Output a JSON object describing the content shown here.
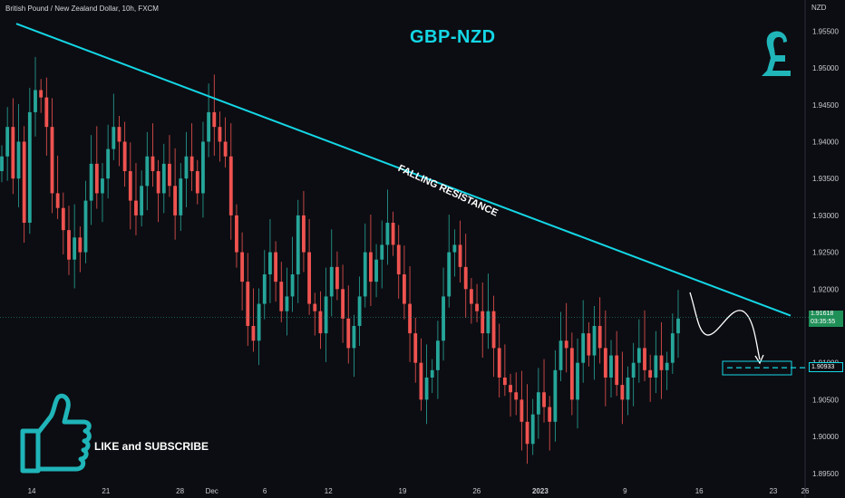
{
  "header": {
    "symbol_title": "British Pound / New Zealand Dollar, 10h, FXCM",
    "unit": "NZD"
  },
  "annotations": {
    "pair": "GBP-NZD",
    "resistance": "FALLING RESISTANCE",
    "cta": "LIKE and SUBSCRIBE"
  },
  "price_labels": {
    "current": "1.91618",
    "countdown": "03:35:55",
    "target": "1.90933"
  },
  "colors": {
    "up": "#26a69a",
    "down": "#ef5350",
    "accent": "#14d7e6",
    "background": "#0c0d12"
  },
  "icons": [
    "pound-sign-icon",
    "thumbs-up-icon"
  ],
  "chart_data": {
    "type": "candlestick",
    "title": "British Pound / New Zealand Dollar, 10h, FXCM",
    "ylabel": "NZD",
    "ylim": [
      1.8935,
      1.9575
    ],
    "yticks": [
      1.955,
      1.95,
      1.945,
      1.94,
      1.935,
      1.93,
      1.925,
      1.92,
      1.915,
      1.91,
      1.905,
      1.9,
      1.895
    ],
    "ytick_labels": [
      "1.95500",
      "1.95000",
      "1.94500",
      "1.94000",
      "1.93500",
      "1.93000",
      "1.92500",
      "1.92000",
      "",
      "1.91000",
      "1.90500",
      "1.90000",
      "1.89500"
    ],
    "xticks": [
      {
        "label": "14",
        "date": "2022-11-14"
      },
      {
        "label": "21",
        "date": "2022-11-21"
      },
      {
        "label": "28",
        "date": "2022-11-28"
      },
      {
        "label": "Dec",
        "date": "2022-12-01"
      },
      {
        "label": "6",
        "date": "2022-12-06"
      },
      {
        "label": "12",
        "date": "2022-12-12"
      },
      {
        "label": "19",
        "date": "2022-12-19"
      },
      {
        "label": "26",
        "date": "2022-12-26"
      },
      {
        "label": "2023",
        "date": "2023-01-01"
      },
      {
        "label": "9",
        "date": "2023-01-09"
      },
      {
        "label": "16",
        "date": "2023-01-16"
      },
      {
        "label": "23",
        "date": "2023-01-23"
      },
      {
        "label": "26",
        "date": "2023-01-26"
      }
    ],
    "xlim": [
      "2022-11-11",
      "2023-01-26"
    ],
    "grid": false,
    "closes": [
      1.938,
      1.942,
      1.935,
      1.94,
      1.929,
      1.944,
      1.947,
      1.946,
      1.942,
      1.933,
      1.931,
      1.928,
      1.924,
      1.927,
      1.925,
      1.932,
      1.937,
      1.933,
      1.935,
      1.939,
      1.942,
      1.94,
      1.936,
      1.932,
      1.93,
      1.934,
      1.938,
      1.936,
      1.933,
      1.937,
      1.934,
      1.93,
      1.935,
      1.938,
      1.936,
      1.933,
      1.94,
      1.944,
      1.942,
      1.94,
      1.938,
      1.93,
      1.925,
      1.921,
      1.915,
      1.913,
      1.918,
      1.922,
      1.925,
      1.921,
      1.917,
      1.919,
      1.922,
      1.93,
      1.925,
      1.918,
      1.917,
      1.914,
      1.919,
      1.923,
      1.92,
      1.916,
      1.912,
      1.915,
      1.919,
      1.925,
      1.921,
      1.924,
      1.926,
      1.929,
      1.926,
      1.922,
      1.918,
      1.914,
      1.91,
      1.905,
      1.908,
      1.909,
      1.913,
      1.919,
      1.925,
      1.926,
      1.923,
      1.92,
      1.918,
      1.917,
      1.914,
      1.917,
      1.912,
      1.908,
      1.907,
      1.906,
      1.905,
      1.902,
      1.899,
      1.903,
      1.906,
      1.904,
      1.902,
      1.909,
      1.913,
      1.912,
      1.905,
      1.91,
      1.914,
      1.911,
      1.915,
      1.912,
      1.908,
      1.911,
      1.907,
      1.905,
      1.908,
      1.91,
      1.912,
      1.909,
      1.908,
      1.911,
      1.909,
      1.91,
      1.914,
      1.916
    ],
    "resistance_line": {
      "label": "FALLING RESISTANCE",
      "from": {
        "date": "2022-11-11",
        "price": 1.956
      },
      "to": {
        "date": "2023-01-26",
        "price": 1.9164
      }
    },
    "current_price": 1.91618,
    "target_price": 1.90933
  }
}
